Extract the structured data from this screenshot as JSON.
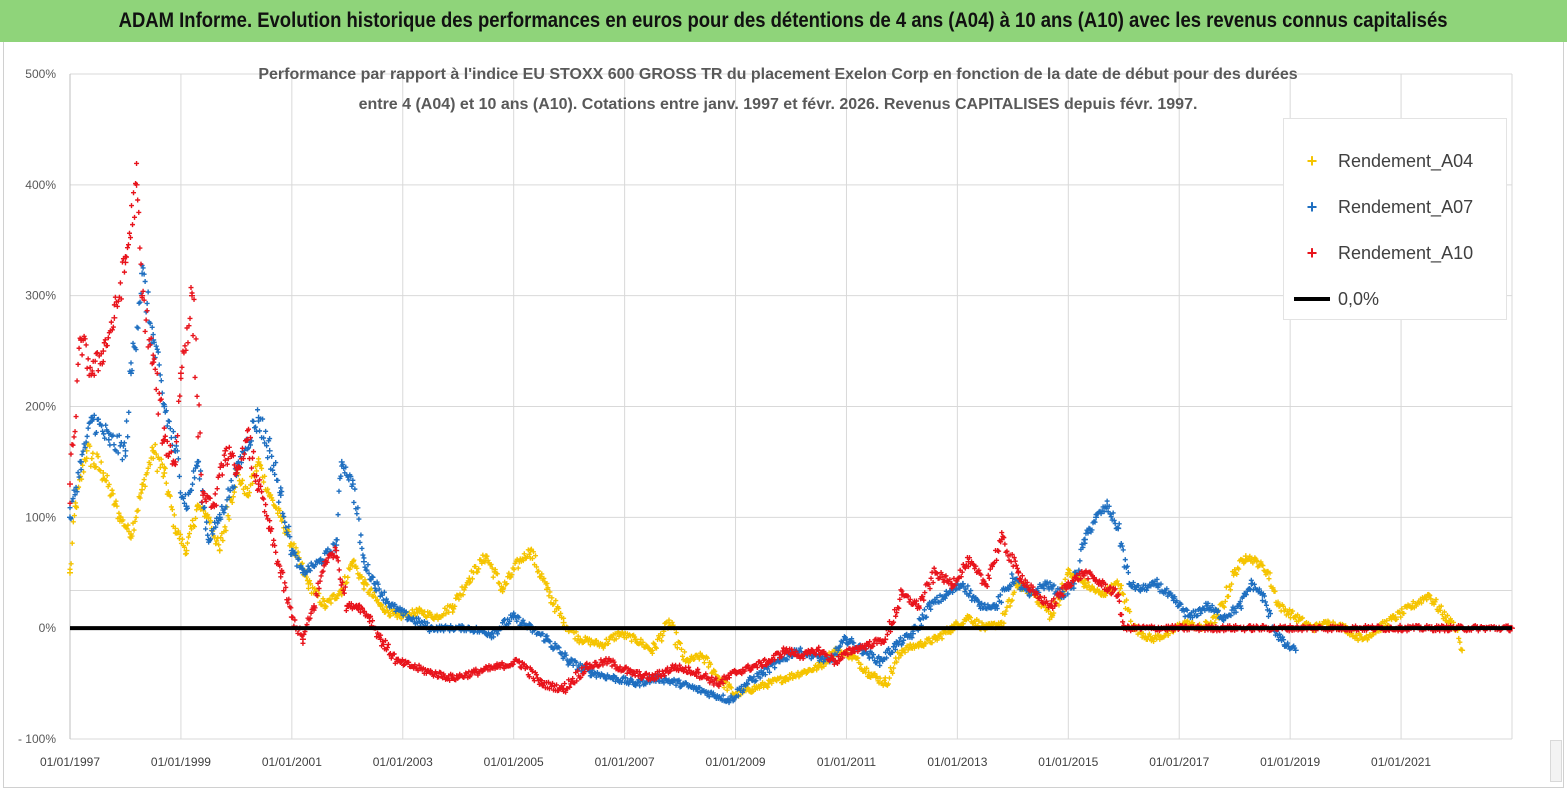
{
  "banner": {
    "text": "ADAM Informe. Evolution historique des performances en euros pour des détentions de 4 ans (A04) à 10 ans (A10) avec les revenus connus capitalisés"
  },
  "colors": {
    "banner_bg": "#8fd47a",
    "A04": "#f5c400",
    "A07": "#1f6fc0",
    "A10": "#e8141c",
    "zero_line": "#000000",
    "grid": "#d9d9d9"
  },
  "chart_data": {
    "type": "scatter",
    "title_lines": [
      "Performance par rapport à l'indice EU STOXX 600 GROSS TR  du placement Exelon Corp en fonction de la date de début pour des durées",
      "entre 4 (A04) et 10 ans (A10). Cotations entre janv. 1997 et févr. 2026. Revenus CAPITALISES depuis févr. 1997."
    ],
    "y_unit": "%",
    "ylim": [
      -100,
      500
    ],
    "y_ticks": [
      -100,
      0,
      100,
      200,
      300,
      400,
      500
    ],
    "y_tick_labels": [
      "- 100%",
      "0%",
      "100%",
      "200%",
      "300%",
      "400%",
      "500%"
    ],
    "xlim": [
      1997.0,
      2023.0
    ],
    "x_ticks": [
      1997,
      1999,
      2001,
      2003,
      2005,
      2007,
      2009,
      2011,
      2013,
      2015,
      2017,
      2019,
      2021
    ],
    "x_tick_labels": [
      "01/01/1997",
      "01/01/1999",
      "01/01/2001",
      "01/01/2003",
      "01/01/2005",
      "01/01/2007",
      "01/01/2009",
      "01/01/2011",
      "01/01/2013",
      "01/01/2015",
      "01/01/2017",
      "01/01/2019",
      "01/01/2021"
    ],
    "legend_position": "top-right",
    "series": [
      {
        "name": "Rendement_A04",
        "color_key": "A04",
        "marker": "+",
        "x": [
          1997.0,
          1997.1,
          1997.3,
          1997.6,
          1997.9,
          1998.1,
          1998.3,
          1998.5,
          1998.7,
          1998.9,
          1999.1,
          1999.3,
          1999.5,
          1999.7,
          2000.0,
          2000.2,
          2000.4,
          2000.6,
          2000.8,
          2001.0,
          2001.3,
          2001.6,
          2001.9,
          2002.1,
          2002.3,
          2002.6,
          2002.9,
          2003.3,
          2003.6,
          2003.9,
          2004.2,
          2004.5,
          2004.8,
          2005.1,
          2005.3,
          2005.6,
          2005.9,
          2006.2,
          2006.6,
          2006.9,
          2007.2,
          2007.5,
          2007.8,
          2008.1,
          2008.4,
          2008.7,
          2009.0,
          2009.3,
          2009.6,
          2009.9,
          2010.2,
          2010.5,
          2010.8,
          2011.1,
          2011.4,
          2011.7,
          2012.0,
          2012.3,
          2012.6,
          2012.9,
          2013.2,
          2013.5,
          2013.8,
          2014.1,
          2014.4,
          2014.7,
          2015.0,
          2015.3,
          2015.6,
          2015.9,
          2016.2,
          2016.5,
          2016.8,
          2017.1,
          2017.4,
          2017.7,
          2018.0,
          2018.2,
          2018.4,
          2018.6,
          2018.8,
          2019.1,
          2019.4,
          2019.7,
          2020.0,
          2020.3,
          2020.6,
          2020.9,
          2021.2,
          2021.5,
          2021.8,
          2022.0,
          2022.1
        ],
        "y": [
          50,
          110,
          160,
          140,
          100,
          85,
          125,
          160,
          140,
          90,
          70,
          110,
          100,
          70,
          140,
          120,
          150,
          120,
          100,
          75,
          40,
          20,
          35,
          60,
          40,
          20,
          10,
          15,
          10,
          20,
          45,
          65,
          35,
          60,
          70,
          35,
          5,
          -10,
          -15,
          -5,
          -10,
          -20,
          5,
          -30,
          -25,
          -45,
          -60,
          -55,
          -50,
          -45,
          -40,
          -35,
          -20,
          -25,
          -40,
          -50,
          -20,
          -15,
          -10,
          0,
          10,
          0,
          5,
          40,
          30,
          10,
          50,
          40,
          30,
          40,
          0,
          -10,
          -5,
          5,
          0,
          10,
          50,
          65,
          60,
          50,
          20,
          10,
          0,
          5,
          0,
          -10,
          0,
          10,
          20,
          30,
          10,
          0,
          -20
        ]
      },
      {
        "name": "Rendement_A07",
        "color_key": "A07",
        "marker": "+",
        "x": [
          1997.0,
          1997.2,
          1997.4,
          1997.7,
          1998.0,
          1998.1,
          1998.3,
          1998.5,
          1998.7,
          1998.9,
          1999.1,
          1999.3,
          1999.5,
          1999.7,
          2000.0,
          2000.2,
          2000.4,
          2000.6,
          2000.8,
          2001.0,
          2001.2,
          2001.5,
          2001.8,
          2001.9,
          2002.1,
          2002.3,
          2002.5,
          2002.8,
          2003.1,
          2003.5,
          2003.9,
          2004.2,
          2004.6,
          2005.0,
          2005.3,
          2005.6,
          2006.0,
          2006.4,
          2006.8,
          2007.2,
          2007.6,
          2008.0,
          2008.3,
          2008.6,
          2008.9,
          2009.2,
          2009.5,
          2009.8,
          2010.1,
          2010.4,
          2010.7,
          2011.0,
          2011.3,
          2011.6,
          2011.9,
          2012.2,
          2012.5,
          2012.8,
          2013.1,
          2013.4,
          2013.7,
          2014.0,
          2014.3,
          2014.6,
          2014.9,
          2015.1,
          2015.3,
          2015.5,
          2015.7,
          2015.9,
          2016.1,
          2016.3,
          2016.6,
          2016.9,
          2017.2,
          2017.5,
          2017.8,
          2018.1,
          2018.3,
          2018.5,
          2018.7,
          2018.9,
          2019.1
        ],
        "y": [
          100,
          150,
          190,
          170,
          160,
          230,
          320,
          260,
          200,
          160,
          110,
          150,
          80,
          100,
          140,
          170,
          190,
          160,
          120,
          70,
          50,
          60,
          75,
          150,
          130,
          60,
          40,
          20,
          10,
          0,
          0,
          0,
          -5,
          10,
          0,
          -10,
          -30,
          -40,
          -45,
          -50,
          -45,
          -50,
          -55,
          -60,
          -65,
          -50,
          -40,
          -30,
          -20,
          -25,
          -30,
          -10,
          -20,
          -30,
          -15,
          -5,
          20,
          30,
          40,
          20,
          20,
          45,
          30,
          40,
          30,
          40,
          80,
          100,
          110,
          90,
          40,
          35,
          40,
          25,
          10,
          20,
          10,
          20,
          40,
          30,
          0,
          -15,
          -20
        ]
      },
      {
        "name": "Rendement_A10",
        "color_key": "A10",
        "marker": "+",
        "x": [
          1997.0,
          1997.2,
          1997.4,
          1997.6,
          1997.8,
          1998.0,
          1998.2,
          1998.3,
          1998.5,
          1998.7,
          1998.9,
          1999.0,
          1999.2,
          1999.4,
          1999.6,
          1999.8,
          2000.0,
          2000.2,
          2000.4,
          2000.6,
          2000.8,
          2001.0,
          2001.2,
          2001.4,
          2001.6,
          2001.8,
          2002.0,
          2002.2,
          2002.4,
          2002.6,
          2002.9,
          2003.2,
          2003.5,
          2003.9,
          2004.3,
          2004.7,
          2005.1,
          2005.5,
          2005.9,
          2006.3,
          2006.7,
          2007.1,
          2007.5,
          2007.9,
          2008.3,
          2008.7,
          2009.0,
          2009.3,
          2009.6,
          2009.9,
          2010.2,
          2010.5,
          2010.8,
          2011.1,
          2011.4,
          2011.7,
          2012.0,
          2012.3,
          2012.6,
          2012.9,
          2013.2,
          2013.5,
          2013.8,
          2014.1,
          2014.4,
          2014.7,
          2015.0,
          2015.3,
          2015.6,
          2015.9,
          2016.0,
          2016.5,
          2017.0,
          2017.5,
          2018.0,
          2018.5,
          2019.0,
          2019.5,
          2020.0,
          2020.5,
          2021.0,
          2021.5,
          2022.0,
          2022.5,
          2023.0
        ],
        "y": [
          130,
          260,
          230,
          250,
          280,
          330,
          400,
          300,
          240,
          170,
          150,
          230,
          300,
          120,
          110,
          160,
          140,
          170,
          130,
          90,
          50,
          10,
          -10,
          20,
          60,
          70,
          20,
          20,
          10,
          -10,
          -30,
          -35,
          -40,
          -45,
          -40,
          -35,
          -30,
          -50,
          -55,
          -35,
          -30,
          -40,
          -45,
          -35,
          -40,
          -50,
          -40,
          -35,
          -30,
          -20,
          -25,
          -20,
          -30,
          -20,
          -15,
          -10,
          30,
          20,
          50,
          40,
          60,
          40,
          80,
          50,
          30,
          20,
          40,
          50,
          40,
          30,
          0,
          0,
          0,
          0,
          0,
          0,
          0,
          0,
          0,
          0,
          0,
          0,
          0,
          0,
          0
        ]
      },
      {
        "name": "0,0%",
        "color_key": "zero_line",
        "marker": "line",
        "x": [
          1997.0,
          2023.0
        ],
        "y": [
          0,
          0
        ]
      }
    ]
  },
  "legend": {
    "items": [
      {
        "label": "Rendement_A04",
        "symbol": "+",
        "color_key": "A04"
      },
      {
        "label": "Rendement_A07",
        "symbol": "+",
        "color_key": "A07"
      },
      {
        "label": "Rendement_A10",
        "symbol": "+",
        "color_key": "A10"
      },
      {
        "label": "0,0%",
        "symbol": "line",
        "color_key": "zero_line"
      }
    ]
  }
}
